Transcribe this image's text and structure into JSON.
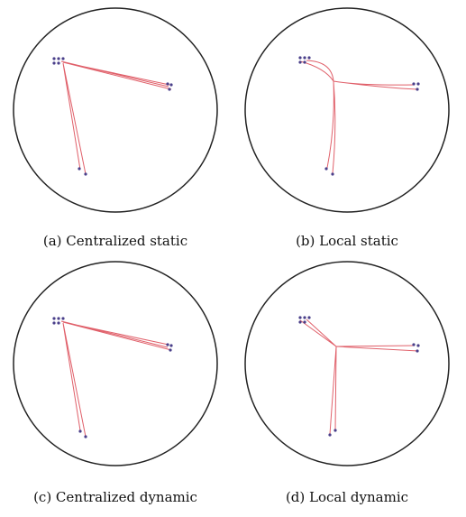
{
  "captions": [
    "(a) Centralized static",
    "(b) Local static",
    "(c) Centralized dynamic",
    "(d) Local dynamic"
  ]
}
